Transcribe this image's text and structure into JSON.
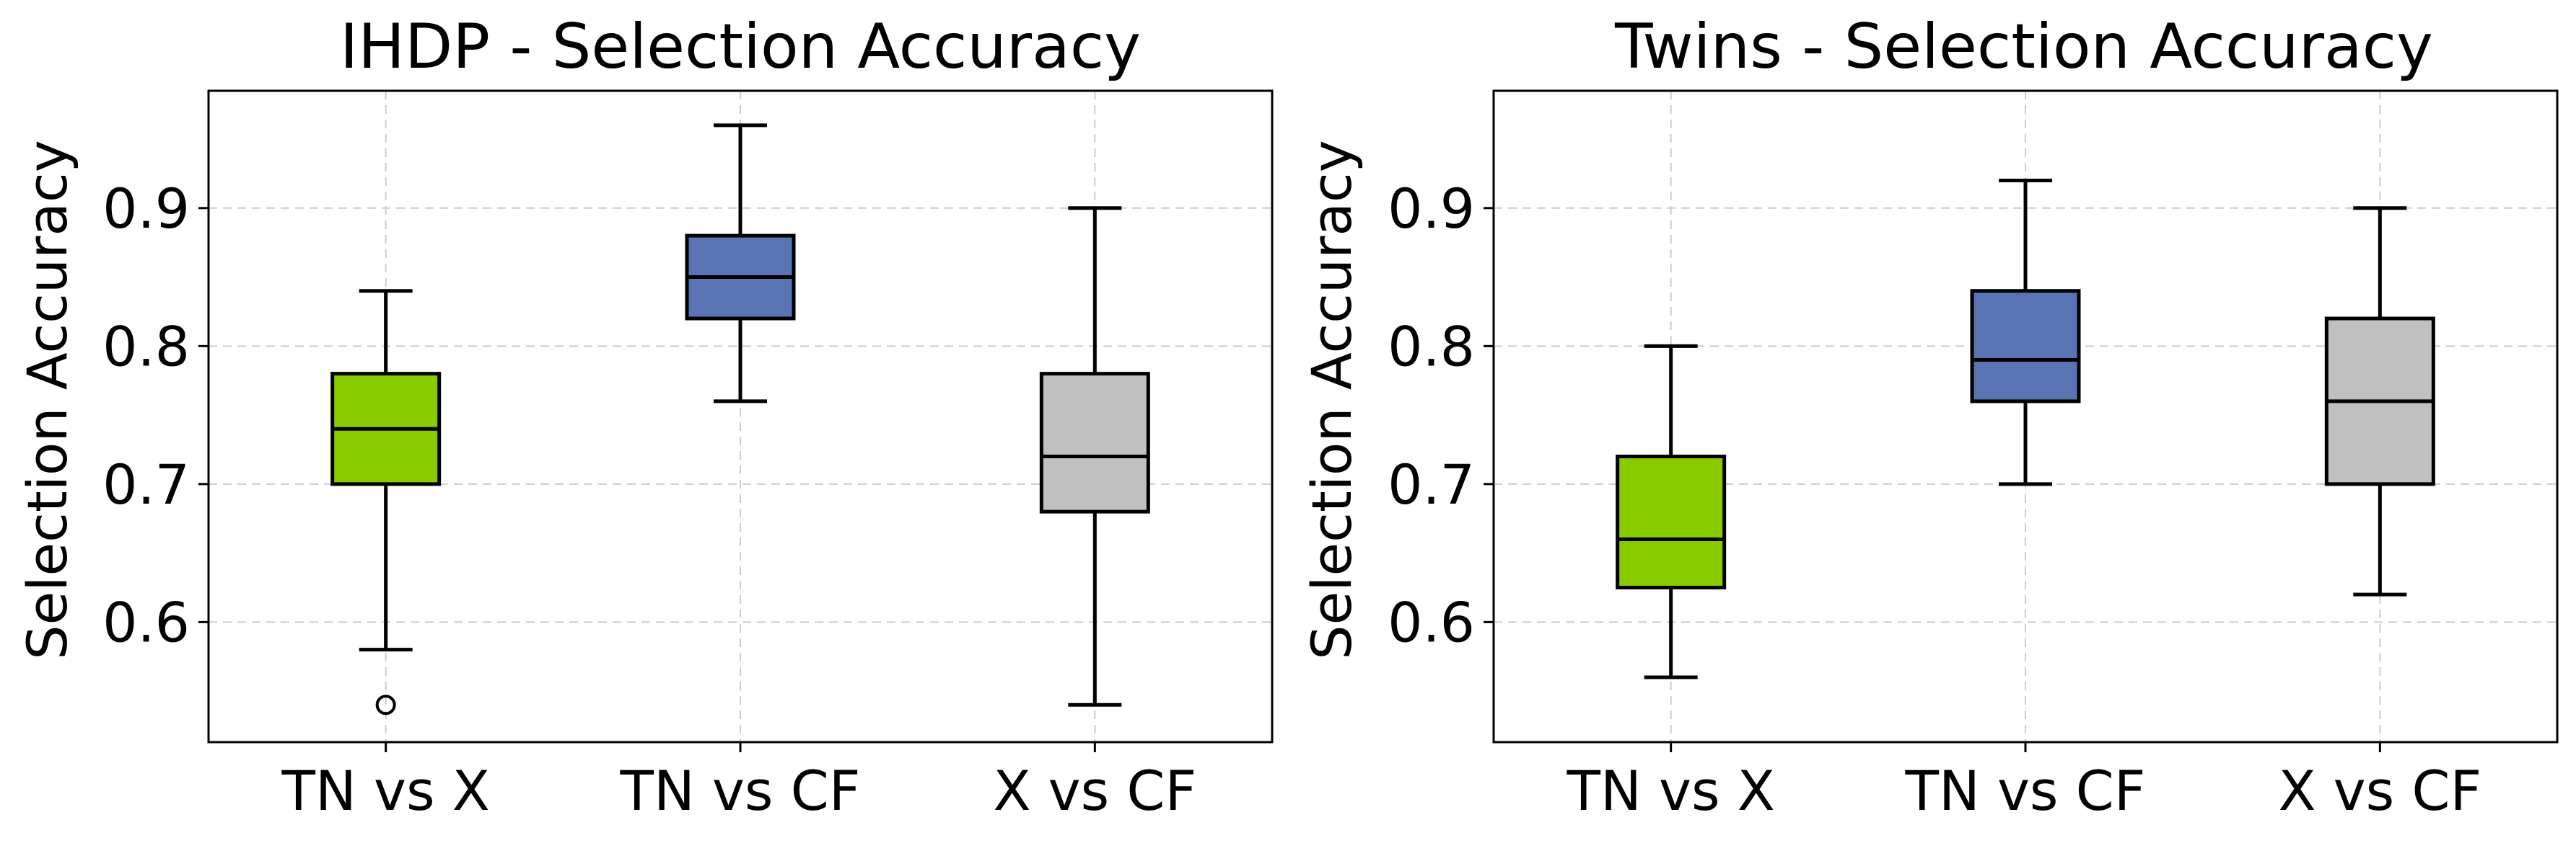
{
  "chart_data": [
    {
      "type": "box",
      "title": "IHDP - Selection Accuracy",
      "ylabel": "Selection Accuracy",
      "xlabel": "",
      "ylim": [
        0.513,
        0.985
      ],
      "yticks": [
        0.6,
        0.7,
        0.8,
        0.9
      ],
      "ytick_labels": [
        "0.6",
        "0.7",
        "0.8",
        "0.9"
      ],
      "grid": true,
      "categories": [
        "TN vs X",
        "TN vs CF",
        "X vs CF"
      ],
      "boxes": [
        {
          "name": "TN vs X",
          "whisker_low": 0.58,
          "q1": 0.7,
          "median": 0.74,
          "q3": 0.78,
          "whisker_high": 0.84,
          "outliers": [
            0.54
          ],
          "color": "#88cc00"
        },
        {
          "name": "TN vs CF",
          "whisker_low": 0.76,
          "q1": 0.82,
          "median": 0.85,
          "q3": 0.88,
          "whisker_high": 0.96,
          "outliers": [],
          "color": "#5a73b3"
        },
        {
          "name": "X vs CF",
          "whisker_low": 0.54,
          "q1": 0.68,
          "median": 0.72,
          "q3": 0.78,
          "whisker_high": 0.9,
          "outliers": [],
          "color": "#c0c0c0"
        }
      ]
    },
    {
      "type": "box",
      "title": "Twins - Selection Accuracy",
      "ylabel": "Selection Accuracy",
      "xlabel": "",
      "ylim": [
        0.513,
        0.985
      ],
      "yticks": [
        0.6,
        0.7,
        0.8,
        0.9
      ],
      "ytick_labels": [
        "0.6",
        "0.7",
        "0.8",
        "0.9"
      ],
      "grid": true,
      "categories": [
        "TN vs X",
        "TN vs CF",
        "X vs CF"
      ],
      "boxes": [
        {
          "name": "TN vs X",
          "whisker_low": 0.56,
          "q1": 0.625,
          "median": 0.66,
          "q3": 0.72,
          "whisker_high": 0.8,
          "outliers": [],
          "color": "#88cc00"
        },
        {
          "name": "TN vs CF",
          "whisker_low": 0.7,
          "q1": 0.76,
          "median": 0.79,
          "q3": 0.84,
          "whisker_high": 0.92,
          "outliers": [],
          "color": "#5a73b3"
        },
        {
          "name": "X vs CF",
          "whisker_low": 0.62,
          "q1": 0.7,
          "median": 0.76,
          "q3": 0.82,
          "whisker_high": 0.9,
          "outliers": [],
          "color": "#c0c0c0"
        }
      ]
    }
  ]
}
